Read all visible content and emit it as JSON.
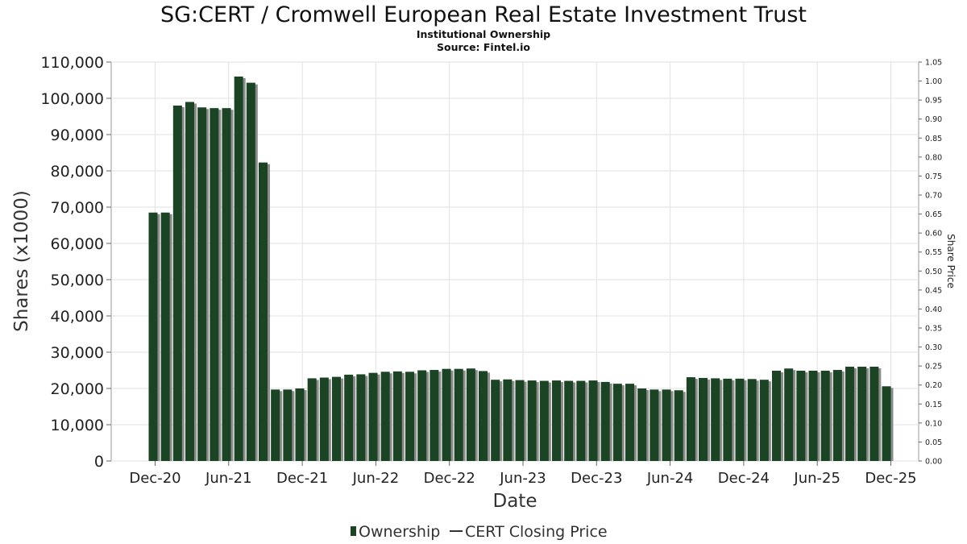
{
  "chart_data": {
    "type": "bar",
    "title": "SG:CERT / Cromwell European Real Estate Investment Trust",
    "subtitle": "Institutional Ownership",
    "source": "Source: Fintel.io",
    "xlabel": "Date",
    "ylabel": "Shares (x1000)",
    "y2label": "Share Price",
    "ylim": [
      0,
      110000
    ],
    "y2lim": [
      0,
      1.05
    ],
    "yticks": [
      "0",
      "10,000",
      "20,000",
      "30,000",
      "40,000",
      "50,000",
      "60,000",
      "70,000",
      "80,000",
      "90,000",
      "100,000",
      "110,000"
    ],
    "y2ticks": [
      "0.00",
      "0.05",
      "0.10",
      "0.15",
      "0.20",
      "0.25",
      "0.30",
      "0.35",
      "0.40",
      "0.45",
      "0.50",
      "0.55",
      "0.60",
      "0.65",
      "0.70",
      "0.75",
      "0.80",
      "0.85",
      "0.90",
      "0.95",
      "1.00",
      "1.05"
    ],
    "xticks": [
      "Dec-20",
      "Jun-21",
      "Dec-21",
      "Jun-22",
      "Dec-22",
      "Jun-23",
      "Dec-23",
      "Jun-24",
      "Dec-24",
      "Jun-25",
      "Dec-25"
    ],
    "grid": true,
    "legend_position": "bottom",
    "series": [
      {
        "name": "Ownership",
        "color": "#1a4423",
        "values": [
          68500,
          68500,
          98000,
          99000,
          97500,
          97300,
          97300,
          106000,
          104300,
          82300,
          19700,
          19700,
          20000,
          22800,
          23000,
          23200,
          23800,
          23900,
          24300,
          24600,
          24700,
          24600,
          25000,
          25100,
          25400,
          25400,
          25500,
          24800,
          22400,
          22500,
          22300,
          22200,
          22100,
          22200,
          22100,
          22100,
          22200,
          21800,
          21300,
          21300,
          20000,
          19700,
          19700,
          19500,
          23100,
          22900,
          22800,
          22700,
          22700,
          22600,
          22400,
          24900,
          25500,
          24900,
          24900,
          24900,
          25100,
          26000,
          26000,
          26000,
          20600
        ]
      },
      {
        "name": "CERT Closing Price",
        "color": "#333333",
        "values": []
      }
    ]
  }
}
